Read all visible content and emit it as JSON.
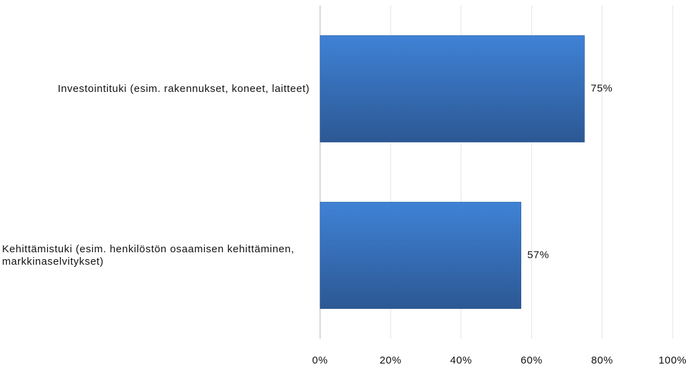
{
  "chart_data": {
    "type": "hbar",
    "categories": [
      "Investointituki (esim. rakennukset, koneet, laitteet)",
      "Kehittämistuki (esim. henkilöstön osaamisen kehittäminen, markkinaselvitykset)"
    ],
    "values": [
      75,
      57
    ],
    "value_labels": [
      "75%",
      "57%"
    ],
    "color": "#3a78c9",
    "xlim": [
      0,
      100
    ],
    "xticks": [
      {
        "value": 0,
        "label": "0%"
      },
      {
        "value": 20,
        "label": "20%"
      },
      {
        "value": 40,
        "label": "40%"
      },
      {
        "value": 60,
        "label": "60%"
      },
      {
        "value": 80,
        "label": "80%"
      },
      {
        "value": 100,
        "label": "100%"
      }
    ],
    "grid": true
  }
}
